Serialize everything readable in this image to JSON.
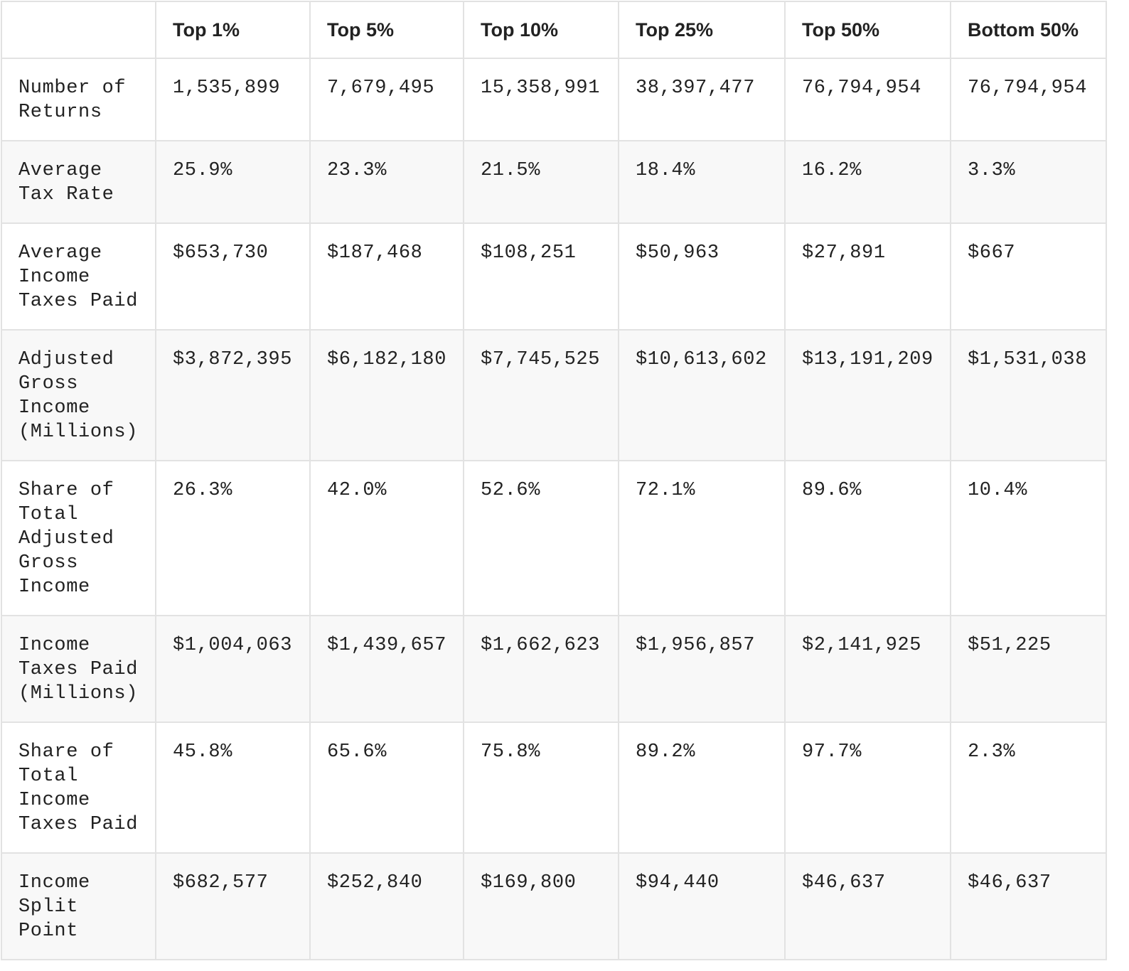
{
  "table": {
    "columns": [
      "Top 1%",
      "Top 5%",
      "Top 10%",
      "Top 25%",
      "Top 50%",
      "Bottom 50%"
    ],
    "rows": [
      {
        "label": "Number of Returns",
        "cells": [
          "1,535,899",
          "7,679,495",
          "15,358,991",
          "38,397,477",
          "76,794,954",
          "76,794,954"
        ]
      },
      {
        "label": "Average Tax Rate",
        "cells": [
          "25.9%",
          "23.3%",
          "21.5%",
          "18.4%",
          "16.2%",
          "3.3%"
        ]
      },
      {
        "label": "Average Income Taxes Paid",
        "cells": [
          "$653,730",
          "$187,468",
          "$108,251",
          "$50,963",
          "$27,891",
          "$667"
        ]
      },
      {
        "label": "Adjusted Gross Income (Millions)",
        "cells": [
          "$3,872,395",
          "$6,182,180",
          "$7,745,525",
          "$10,613,602",
          "$13,191,209",
          "$1,531,038"
        ]
      },
      {
        "label": "Share of Total Adjusted Gross Income",
        "cells": [
          "26.3%",
          "42.0%",
          "52.6%",
          "72.1%",
          "89.6%",
          "10.4%"
        ]
      },
      {
        "label": "Income Taxes Paid (Millions)",
        "cells": [
          "$1,004,063",
          "$1,439,657",
          "$1,662,623",
          "$1,956,857",
          "$2,141,925",
          "$51,225"
        ]
      },
      {
        "label": "Share of Total Income Taxes Paid",
        "cells": [
          "45.8%",
          "65.6%",
          "75.8%",
          "89.2%",
          "97.7%",
          "2.3%"
        ]
      },
      {
        "label": "Income Split Point",
        "cells": [
          "$682,577",
          "$252,840",
          "$169,800",
          "$94,440",
          "$46,637",
          "$46,637"
        ]
      }
    ]
  }
}
